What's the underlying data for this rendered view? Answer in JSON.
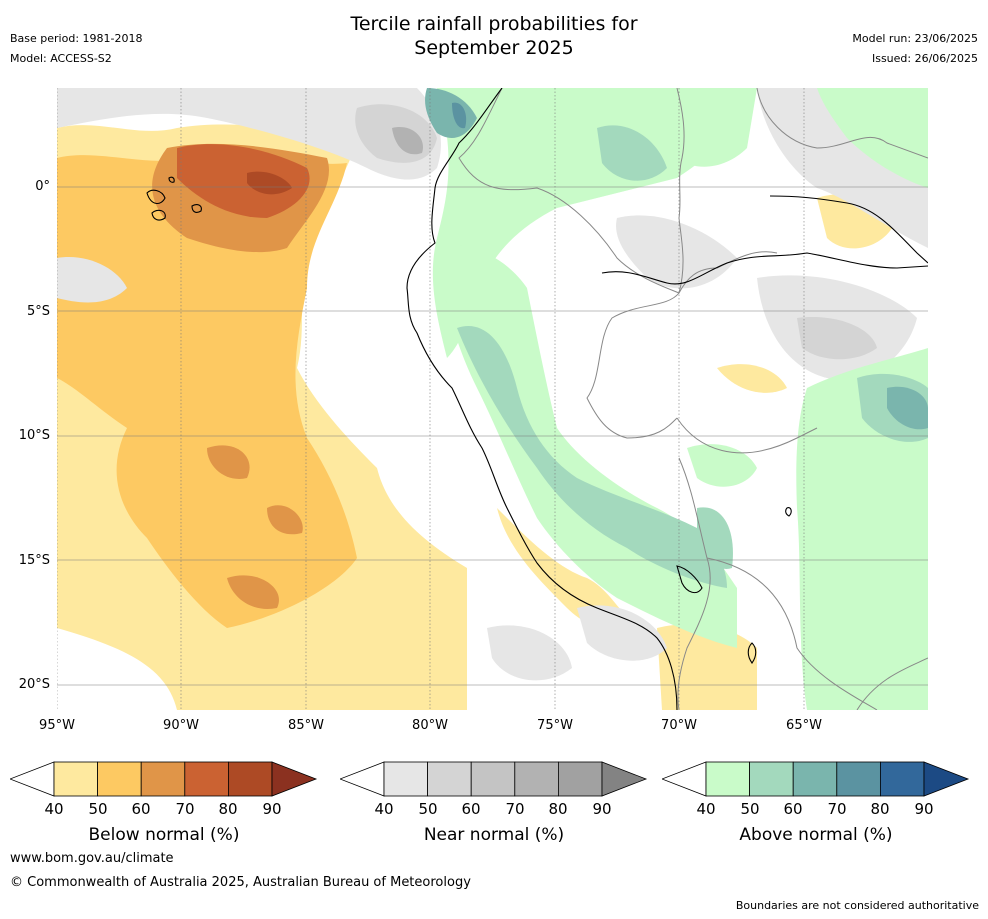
{
  "title": {
    "line1": "Tercile rainfall probabilities for",
    "line2": "September 2025"
  },
  "meta_left": {
    "base_period": "Base period: 1981-2018",
    "model": "Model: ACCESS-S2"
  },
  "meta_right": {
    "model_run": "Model run: 23/06/2025",
    "issued": "Issued: 26/06/2025"
  },
  "map": {
    "lat_labels": [
      "0°",
      "5°S",
      "10°S",
      "15°S",
      "20°S"
    ],
    "lon_labels": [
      "95°W",
      "90°W",
      "85°W",
      "80°W",
      "75°W",
      "70°W",
      "65°W"
    ],
    "grid_lats": [
      0,
      -5,
      -10,
      -15,
      -20
    ],
    "grid_lons": [
      -95,
      -90,
      -85,
      -80,
      -75,
      -70,
      -65
    ],
    "extent": {
      "lon_min": -95,
      "lon_max": -60,
      "lat_min": -21,
      "lat_max": 4
    }
  },
  "colorbars": [
    {
      "name": "below",
      "title": "Below normal (%)",
      "ticks": [
        "40",
        "50",
        "60",
        "70",
        "80",
        "90"
      ],
      "colors": [
        "#ffffff",
        "#fee99f",
        "#fdc962",
        "#e09548",
        "#cb6232",
        "#ad4a25",
        "#8b3120"
      ]
    },
    {
      "name": "near",
      "title": "Near normal (%)",
      "ticks": [
        "40",
        "50",
        "60",
        "70",
        "80",
        "90"
      ],
      "colors": [
        "#ffffff",
        "#e6e6e6",
        "#d4d4d4",
        "#c4c4c4",
        "#b2b2b2",
        "#a1a1a1",
        "#838383"
      ]
    },
    {
      "name": "above",
      "title": "Above normal (%)",
      "ticks": [
        "40",
        "50",
        "60",
        "70",
        "80",
        "90"
      ],
      "colors": [
        "#ffffff",
        "#c9fbc9",
        "#a3d9bd",
        "#7ab5ad",
        "#5b93a1",
        "#32689b",
        "#1c4a84"
      ]
    }
  ],
  "footer": {
    "url": "www.bom.gov.au/climate",
    "copyright": "© Commonwealth of Australia 2025, Australian Bureau of Meteorology",
    "note": "Boundaries are not considered authoritative"
  }
}
